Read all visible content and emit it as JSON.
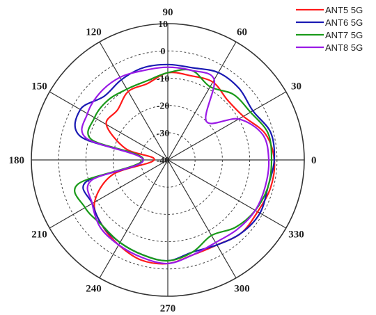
{
  "chart_data": {
    "type": "polar-line",
    "title": "",
    "angle_unit": "degrees",
    "angle_ticks": [
      0,
      30,
      60,
      90,
      120,
      150,
      180,
      210,
      240,
      270,
      300,
      330
    ],
    "angle_tick_labels": [
      "0",
      "30",
      "60",
      "90",
      "120",
      "150",
      "180",
      "210",
      "240",
      "270",
      "300",
      "330"
    ],
    "radial_ticks": [
      10,
      0,
      -10,
      -20,
      -30,
      -40
    ],
    "radial_tick_labels": [
      "10",
      "0",
      "-10",
      "-20",
      "-30",
      "-40"
    ],
    "rlim": [
      -40,
      10
    ],
    "grid": true,
    "legend_position": "top-right",
    "series": [
      {
        "name": "ANT5 5G",
        "color": "#ff1a1a",
        "angles": [
          0,
          15,
          30,
          45,
          60,
          75,
          90,
          105,
          120,
          135,
          150,
          165,
          180,
          195,
          210,
          225,
          240,
          255,
          270,
          285,
          300,
          315,
          330,
          345
        ],
        "values": [
          -1,
          -3,
          -8,
          -9,
          -7,
          -8,
          -8,
          -11,
          -11,
          -14,
          -14,
          -24,
          -35,
          -19,
          -9,
          -6,
          -4,
          -2,
          -2,
          -4,
          -4,
          -2,
          -2,
          -1
        ]
      },
      {
        "name": "ANT6 5G",
        "color": "#1a1ab3",
        "angles": [
          0,
          15,
          30,
          45,
          60,
          75,
          90,
          105,
          120,
          135,
          150,
          165,
          180,
          195,
          210,
          225,
          240,
          255,
          270,
          285,
          300,
          315,
          330,
          345
        ],
        "values": [
          -1,
          -1,
          -4,
          -3,
          -3,
          -5,
          -5,
          -5,
          -6,
          -7,
          -3,
          -7,
          -31,
          -9,
          -8,
          -6,
          -5,
          -4,
          -3,
          -5,
          -4,
          -2,
          -1,
          -2
        ]
      },
      {
        "name": "ANT7 5G",
        "color": "#1a9a1a",
        "angles": [
          0,
          15,
          30,
          45,
          60,
          75,
          90,
          105,
          120,
          135,
          150,
          165,
          180,
          195,
          210,
          225,
          240,
          255,
          270,
          285,
          300,
          315,
          330,
          345
        ],
        "values": [
          -2,
          -2,
          -5,
          -6,
          -9,
          -6,
          -8,
          -10,
          -10,
          -9,
          -9,
          -11,
          -31,
          -6,
          -5,
          -6,
          -5,
          -4,
          -3,
          -5,
          -8,
          -5,
          -3,
          -2
        ]
      },
      {
        "name": "ANT8 5G",
        "color": "#9a1ae6",
        "angles": [
          0,
          15,
          30,
          45,
          60,
          75,
          90,
          105,
          120,
          135,
          150,
          165,
          180,
          195,
          210,
          225,
          240,
          255,
          270,
          285,
          300,
          315,
          330,
          345
        ],
        "values": [
          -3,
          -4,
          -10,
          -20,
          -6,
          -6,
          -6,
          -6,
          -5,
          -5,
          -6,
          -9,
          -31,
          -11,
          -8,
          -5,
          -4,
          -3,
          -2,
          -4,
          -5,
          -4,
          -3,
          -3
        ]
      }
    ]
  }
}
